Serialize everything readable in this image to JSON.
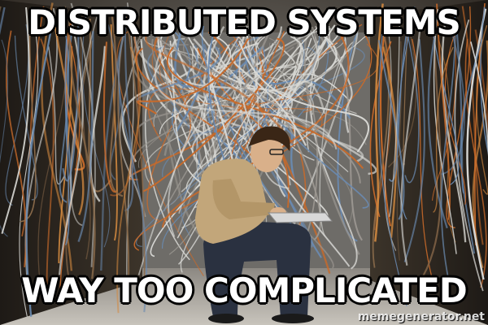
{
  "meme": {
    "top_text": "DISTRIBUTED SYSTEMS",
    "bottom_text": "WAY TOO COMPLICATED",
    "watermark": "memegenerator.net"
  },
  "colors": {
    "cable_light": "#d8d8d4",
    "cable_orange": "#c86a2a",
    "cable_blue": "#6a8ab0",
    "sweater": "#c2a67a",
    "jeans": "#2a3140",
    "floor": "#b8b4ac"
  }
}
